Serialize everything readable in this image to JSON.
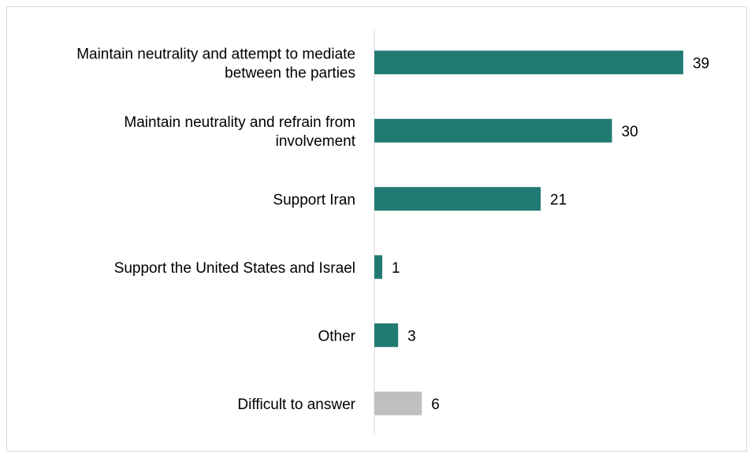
{
  "chart_data": {
    "type": "bar",
    "orientation": "horizontal",
    "categories": [
      "Maintain neutrality and attempt to mediate between the parties",
      "Maintain neutrality and refrain from involvement",
      "Support Iran",
      "Support the United States and Israel",
      "Other",
      "Difficult to answer"
    ],
    "category_lines": [
      [
        "Maintain neutrality and attempt to mediate",
        "between the parties"
      ],
      [
        "Maintain neutrality and refrain from",
        "involvement"
      ],
      [
        "Support Iran"
      ],
      [
        "Support the United States and Israel"
      ],
      [
        "Other"
      ],
      [
        "Difficult to answer"
      ]
    ],
    "values": [
      39,
      30,
      21,
      1,
      3,
      6
    ],
    "value_labels": [
      "39",
      "30",
      "21",
      "1",
      "3",
      "6"
    ],
    "colors": [
      "#217a72",
      "#217a72",
      "#217a72",
      "#217a72",
      "#217a72",
      "#bfbfbf"
    ],
    "xlim": [
      0,
      40
    ],
    "grid": false,
    "legend": "none",
    "title": "",
    "xlabel": "",
    "ylabel": ""
  }
}
